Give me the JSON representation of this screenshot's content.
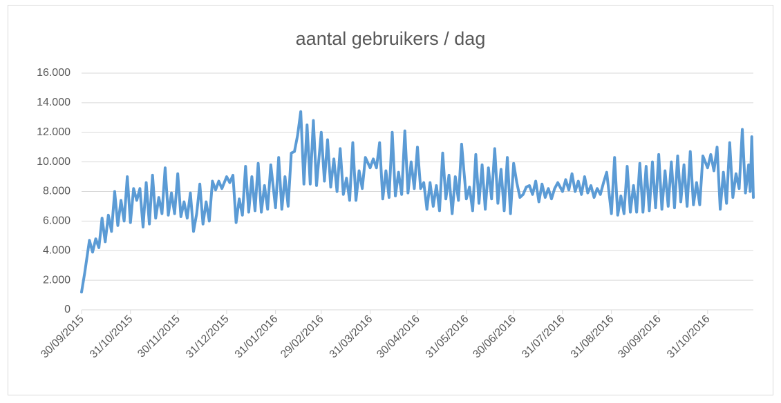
{
  "chart_data": {
    "type": "line",
    "title": "aantal gebruikers / dag",
    "x": [
      "30/09/2015",
      "02/10/2015",
      "05/10/2015",
      "07/10/2015",
      "09/10/2015",
      "11/10/2015",
      "13/10/2015",
      "15/10/2015",
      "17/10/2015",
      "19/10/2015",
      "21/10/2015",
      "23/10/2015",
      "25/10/2015",
      "27/10/2015",
      "29/10/2015",
      "31/10/2015",
      "02/11/2015",
      "04/11/2015",
      "06/11/2015",
      "08/11/2015",
      "10/11/2015",
      "12/11/2015",
      "14/11/2015",
      "16/11/2015",
      "18/11/2015",
      "20/11/2015",
      "22/11/2015",
      "24/11/2015",
      "26/11/2015",
      "28/11/2015",
      "30/11/2015",
      "02/12/2015",
      "04/12/2015",
      "06/12/2015",
      "08/12/2015",
      "10/12/2015",
      "12/12/2015",
      "14/12/2015",
      "16/12/2015",
      "18/12/2015",
      "20/12/2015",
      "22/12/2015",
      "24/12/2015",
      "26/12/2015",
      "28/12/2015",
      "31/12/2015",
      "02/01/2016",
      "04/01/2016",
      "06/01/2016",
      "08/01/2016",
      "10/01/2016",
      "12/01/2016",
      "14/01/2016",
      "16/01/2016",
      "18/01/2016",
      "20/01/2016",
      "22/01/2016",
      "24/01/2016",
      "26/01/2016",
      "28/01/2016",
      "31/01/2016",
      "02/02/2016",
      "04/02/2016",
      "06/02/2016",
      "08/02/2016",
      "10/02/2016",
      "12/02/2016",
      "14/02/2016",
      "16/02/2016",
      "18/02/2016",
      "20/02/2016",
      "22/02/2016",
      "24/02/2016",
      "26/02/2016",
      "29/02/2016",
      "02/03/2016",
      "04/03/2016",
      "06/03/2016",
      "08/03/2016",
      "10/03/2016",
      "12/03/2016",
      "14/03/2016",
      "16/03/2016",
      "18/03/2016",
      "20/03/2016",
      "22/03/2016",
      "24/03/2016",
      "26/03/2016",
      "28/03/2016",
      "31/03/2016",
      "02/04/2016",
      "04/04/2016",
      "06/04/2016",
      "08/04/2016",
      "10/04/2016",
      "12/04/2016",
      "14/04/2016",
      "16/04/2016",
      "18/04/2016",
      "20/04/2016",
      "22/04/2016",
      "24/04/2016",
      "26/04/2016",
      "28/04/2016",
      "30/04/2016",
      "02/05/2016",
      "04/05/2016",
      "06/05/2016",
      "08/05/2016",
      "10/05/2016",
      "12/05/2016",
      "14/05/2016",
      "16/05/2016",
      "18/05/2016",
      "20/05/2016",
      "22/05/2016",
      "24/05/2016",
      "26/05/2016",
      "28/05/2016",
      "31/05/2016",
      "02/06/2016",
      "04/06/2016",
      "06/06/2016",
      "08/06/2016",
      "10/06/2016",
      "12/06/2016",
      "14/06/2016",
      "16/06/2016",
      "18/06/2016",
      "20/06/2016",
      "22/06/2016",
      "24/06/2016",
      "26/06/2016",
      "28/06/2016",
      "30/06/2016",
      "02/07/2016",
      "04/07/2016",
      "06/07/2016",
      "08/07/2016",
      "10/07/2016",
      "12/07/2016",
      "14/07/2016",
      "16/07/2016",
      "18/07/2016",
      "20/07/2016",
      "22/07/2016",
      "24/07/2016",
      "26/07/2016",
      "28/07/2016",
      "31/07/2016",
      "02/08/2016",
      "04/08/2016",
      "06/08/2016",
      "08/08/2016",
      "10/08/2016",
      "12/08/2016",
      "14/08/2016",
      "16/08/2016",
      "18/08/2016",
      "20/08/2016",
      "22/08/2016",
      "24/08/2016",
      "26/08/2016",
      "28/08/2016",
      "31/08/2016",
      "02/09/2016",
      "04/09/2016",
      "06/09/2016",
      "08/09/2016",
      "10/09/2016",
      "12/09/2016",
      "14/09/2016",
      "16/09/2016",
      "18/09/2016",
      "20/09/2016",
      "22/09/2016",
      "24/09/2016",
      "26/09/2016",
      "28/09/2016",
      "30/09/2016",
      "02/10/2016",
      "04/10/2016",
      "06/10/2016",
      "08/10/2016",
      "10/10/2016",
      "12/10/2016",
      "14/10/2016",
      "16/10/2016",
      "18/10/2016",
      "20/10/2016",
      "22/10/2016",
      "24/10/2016",
      "26/10/2016",
      "28/10/2016",
      "31/10/2016",
      "02/11/2016",
      "04/11/2016",
      "06/11/2016",
      "08/11/2016",
      "10/11/2016",
      "12/11/2016",
      "14/11/2016",
      "16/11/2016",
      "18/11/2016",
      "20/11/2016",
      "22/11/2016",
      "24/11/2016",
      "26/11/2016",
      "27/11/2016",
      "28/11/2016",
      "29/11/2016"
    ],
    "series": [
      {
        "name": "aantal gebruikers",
        "color": "#5b9bd5",
        "values": [
          1200,
          2500,
          4700,
          3900,
          4800,
          4200,
          6200,
          4600,
          6400,
          5300,
          8000,
          5700,
          7400,
          6000,
          9000,
          5900,
          8200,
          7400,
          8200,
          5600,
          8600,
          5800,
          9100,
          6200,
          7600,
          6500,
          9600,
          6400,
          7900,
          6500,
          9200,
          6300,
          7300,
          6200,
          7900,
          5300,
          6500,
          8500,
          5800,
          7300,
          6000,
          8700,
          8100,
          8700,
          8200,
          9000,
          8600,
          9100,
          5900,
          7500,
          6400,
          9700,
          6600,
          9000,
          6700,
          9900,
          6600,
          8400,
          6800,
          9800,
          6900,
          10300,
          6800,
          9000,
          7000,
          10600,
          10700,
          11800,
          13400,
          8500,
          12500,
          8500,
          12800,
          8400,
          12000,
          8700,
          11500,
          8300,
          10200,
          8000,
          10900,
          7800,
          8900,
          7400,
          11300,
          7400,
          9400,
          8200,
          10300,
          9600,
          10200,
          9600,
          11300,
          7500,
          9400,
          7600,
          12000,
          7700,
          9300,
          7800,
          12100,
          7900,
          10000,
          8200,
          11000,
          8200,
          8600,
          6800,
          8600,
          7000,
          8400,
          6700,
          10600,
          7500,
          9100,
          6500,
          9000,
          7400,
          11200,
          7500,
          8300,
          6700,
          10500,
          7200,
          9800,
          6800,
          9600,
          7500,
          10900,
          7200,
          9500,
          6700,
          10300,
          6500,
          9900,
          8600,
          7600,
          7800,
          8300,
          8400,
          7800,
          8700,
          7300,
          8500,
          7600,
          8200,
          7500,
          8200,
          8600,
          8000,
          8800,
          8100,
          9200,
          8000,
          8700,
          7800,
          9000,
          7900,
          8400,
          7600,
          8200,
          7800,
          8600,
          9300,
          6500,
          10300,
          6400,
          7700,
          6500,
          9700,
          6600,
          8400,
          6600,
          9900,
          6600,
          9700,
          6700,
          10000,
          6900,
          10500,
          6800,
          9400,
          7000,
          10000,
          6900,
          10400,
          7300,
          9800,
          7000,
          10700,
          7100,
          8600,
          7100,
          10400,
          9600,
          10500,
          9400,
          11000,
          6800,
          9300,
          7200,
          11300,
          7600,
          9200,
          8200,
          12200,
          7900,
          9800,
          8000,
          11700,
          7600
        ]
      }
    ],
    "xlim": [
      "30/09/2015",
      "29/11/2016"
    ],
    "xticks": [
      "30/09/2015",
      "31/10/2015",
      "30/11/2015",
      "31/12/2015",
      "31/01/2016",
      "29/02/2016",
      "31/03/2016",
      "30/04/2016",
      "31/05/2016",
      "30/06/2016",
      "31/07/2016",
      "31/08/2016",
      "30/09/2016",
      "31/10/2016"
    ],
    "ylim": [
      0,
      16000
    ],
    "yticks": [
      0,
      {
        "value": 2000,
        "label": "2.000"
      },
      {
        "value": 4000,
        "label": "4.000"
      },
      {
        "value": 6000,
        "label": "6.000"
      },
      {
        "value": 8000,
        "label": "8.000"
      },
      {
        "value": 10000,
        "label": "10.000"
      },
      {
        "value": 12000,
        "label": "12.000"
      },
      {
        "value": 14000,
        "label": "14.000"
      },
      {
        "value": 16000,
        "label": "16.000"
      }
    ],
    "grid": true
  }
}
